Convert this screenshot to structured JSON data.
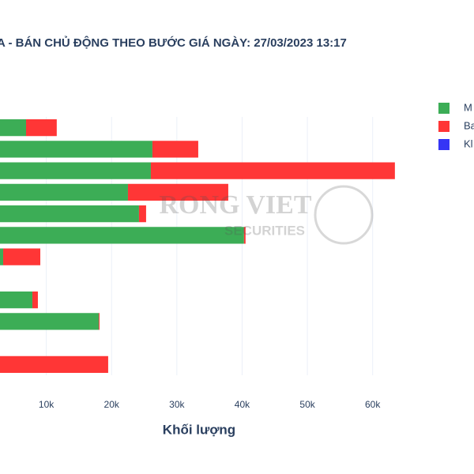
{
  "chart_data": {
    "type": "stacked-bar-horizontal",
    "title": "A - BÁN CHỦ ĐỘNG THEO BƯỚC GIÁ NGÀY: 27/03/2023 13:17",
    "x_label": "Khối lượng",
    "watermark": {
      "text": "RONG VIET",
      "subtext": "SECURITIES"
    },
    "categories": [
      null,
      null,
      null,
      null,
      null,
      null,
      null,
      null,
      null,
      null,
      null,
      null
    ],
    "series": [
      {
        "name": "M",
        "color": "#3cad56",
        "values": [
          6900,
          26260,
          26020,
          22510,
          24200,
          40290,
          3390,
          0,
          7870,
          18030,
          0,
          0
        ]
      },
      {
        "name": "Ba",
        "color": "#ff3636",
        "values": [
          4700,
          7020,
          37390,
          15370,
          1090,
          240,
          5690,
          0,
          840,
          120,
          0,
          19480
        ]
      },
      {
        "name": "Kl",
        "color": "#3535f5",
        "values": [
          0,
          0,
          0,
          0,
          0,
          0,
          0,
          0,
          0,
          0,
          0,
          0
        ]
      }
    ],
    "xlim": [
      0,
      65000
    ],
    "xticks": [
      {
        "value": 10000,
        "label": "10k"
      },
      {
        "value": 20000,
        "label": "20k"
      },
      {
        "value": 30000,
        "label": "30k"
      },
      {
        "value": 40000,
        "label": "40k"
      },
      {
        "value": 50000,
        "label": "50k"
      },
      {
        "value": 60000,
        "label": "60k"
      }
    ],
    "grid": true,
    "legend": "right"
  }
}
